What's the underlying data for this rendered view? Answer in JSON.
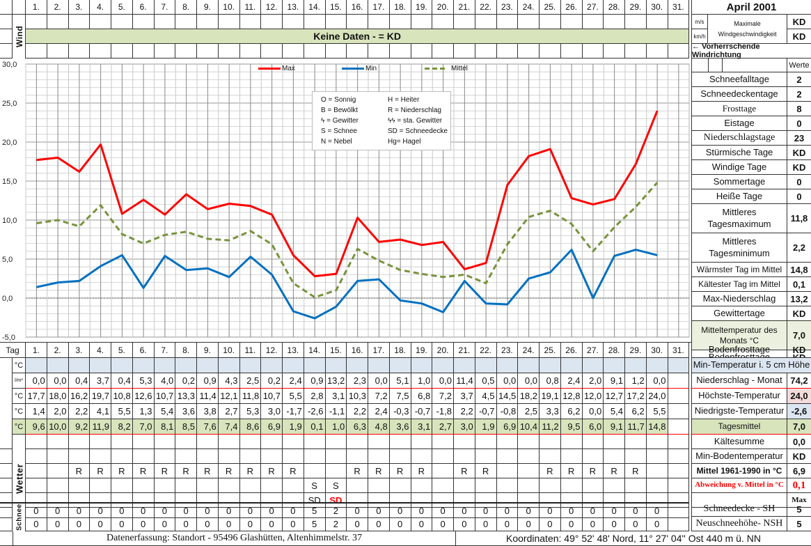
{
  "title": "April 2001",
  "days": [
    "1.",
    "2.",
    "3.",
    "4.",
    "5.",
    "6.",
    "7.",
    "8.",
    "9.",
    "10.",
    "11.",
    "12.",
    "13.",
    "14.",
    "15.",
    "16.",
    "17.",
    "18.",
    "19.",
    "20.",
    "21.",
    "22.",
    "23.",
    "24.",
    "25.",
    "26.",
    "27.",
    "28.",
    "29.",
    "30.",
    "31."
  ],
  "wind": {
    "section_label": "Wind",
    "banner": "Keine Daten -  = KD",
    "unit_ms": "m/s",
    "unit_kmh": "km/h",
    "max_label_1": "Maximale",
    "max_label_2": "Windgeschwindigkeit",
    "max_ms": "KD",
    "max_kmh": "KD",
    "direction_label": "← Vorherrschende Windrichtung"
  },
  "chart_data": {
    "type": "line",
    "x": [
      1,
      2,
      3,
      4,
      5,
      6,
      7,
      8,
      9,
      10,
      11,
      12,
      13,
      14,
      15,
      16,
      17,
      18,
      19,
      20,
      21,
      22,
      23,
      24,
      25,
      26,
      27,
      28,
      29,
      30
    ],
    "series": [
      {
        "name": "Max",
        "color": "#ff0000",
        "style": "solid",
        "values": [
          17.7,
          18.0,
          16.2,
          19.7,
          10.8,
          12.6,
          10.7,
          13.3,
          11.4,
          12.1,
          11.8,
          10.7,
          5.5,
          2.8,
          3.1,
          10.3,
          7.2,
          7.5,
          6.8,
          7.2,
          3.7,
          4.5,
          14.5,
          18.2,
          19.1,
          12.8,
          12.0,
          12.7,
          17.2,
          24.0
        ]
      },
      {
        "name": "Min",
        "color": "#0070c0",
        "style": "solid",
        "values": [
          1.4,
          2.0,
          2.2,
          4.1,
          5.5,
          1.3,
          5.4,
          3.6,
          3.8,
          2.7,
          5.3,
          3.0,
          -1.7,
          -2.6,
          -1.1,
          2.2,
          2.4,
          -0.3,
          -0.7,
          -1.8,
          2.2,
          -0.7,
          -0.8,
          2.5,
          3.3,
          6.2,
          0.0,
          5.4,
          6.2,
          5.5
        ]
      },
      {
        "name": "Mittel",
        "color": "#77933c",
        "style": "dashed",
        "values": [
          9.6,
          10.0,
          9.2,
          11.9,
          8.2,
          7.0,
          8.1,
          8.5,
          7.6,
          7.4,
          8.6,
          6.9,
          1.9,
          0.1,
          1.0,
          6.3,
          4.8,
          3.6,
          3.1,
          2.7,
          3.0,
          1.9,
          6.9,
          10.4,
          11.2,
          9.5,
          6.0,
          9.1,
          11.7,
          14.8
        ]
      }
    ],
    "ylim": [
      -5.0,
      30.0
    ],
    "yticks": [
      "30,0",
      "25,0",
      "20,0",
      "15,0",
      "10,0",
      "5,0",
      "0,0",
      "-5,0"
    ],
    "grid": true,
    "legend_position": "top"
  },
  "weather_legend": [
    {
      "left": "O = Sonnig",
      "right": "H = Heiter"
    },
    {
      "left": "B = Bewölkt",
      "right": "R = Niederschlag"
    },
    {
      "left": "ϟ = Gewitter",
      "right": "ϟϟ = sta. Gewitter"
    },
    {
      "left": "S = Schnee",
      "right": "SD = Schneedecke"
    },
    {
      "left": "N = Nebel",
      "right": "Hg= Hagel"
    }
  ],
  "stats": {
    "header": "Werte",
    "items": [
      {
        "label": "Schneefalltage",
        "value": "2"
      },
      {
        "label": "Schneedeckentage",
        "value": "2"
      },
      {
        "label": "Frosttage",
        "value": "8"
      },
      {
        "label": "Eistage",
        "value": "0"
      },
      {
        "label": "Niederschlagstage",
        "value": "23"
      },
      {
        "label": "Stürmische Tage",
        "value": "KD"
      },
      {
        "label": "Windige Tage",
        "value": "KD"
      },
      {
        "label": "Sommertage",
        "value": "0"
      },
      {
        "label": "Heiße Tage",
        "value": "0"
      },
      {
        "label": "Mittleres Tagesmaximum",
        "value": "11,8"
      },
      {
        "label": "Mittleres Tagesminimum",
        "value": "2,2"
      },
      {
        "label": "Wärmster Tag im Mittel",
        "value": "14,8"
      },
      {
        "label": "Kältester Tag im Mittel",
        "value": "0,1"
      },
      {
        "label": "Max-Niederschlag",
        "value": "13,2"
      },
      {
        "label": "Gewittertage",
        "value": "KD"
      },
      {
        "label": "Mitteltemperatur des Monats °C",
        "value": "7,0"
      },
      {
        "label": "Bodenfrosttage",
        "value": "KD"
      }
    ]
  },
  "table": {
    "tag_label": "Tag",
    "rows": [
      {
        "unit": "°C",
        "summary_label": "Min-Temperatur i. 5 cm Höhe",
        "summary_value": "",
        "values": []
      },
      {
        "unit": "l/m²",
        "summary_label": "Niederschlag - Monat",
        "summary_value": "74,2",
        "values": [
          "0,0",
          "0,0",
          "0,4",
          "3,7",
          "0,4",
          "5,3",
          "4,0",
          "0,2",
          "0,9",
          "4,3",
          "2,5",
          "0,2",
          "2,4",
          "0,9",
          "13,2",
          "2,3",
          "0,0",
          "5,1",
          "1,0",
          "0,0",
          "11,4",
          "0,5",
          "0,0",
          "0,0",
          "0,8",
          "2,4",
          "2,0",
          "9,1",
          "1,2",
          "0,0",
          ""
        ]
      },
      {
        "unit": "°C",
        "summary_label": "Höchste-Temperatur",
        "summary_value": "24,0",
        "values": [
          "17,7",
          "18,0",
          "16,2",
          "19,7",
          "10,8",
          "12,6",
          "10,7",
          "13,3",
          "11,4",
          "12,1",
          "11,8",
          "10,7",
          "5,5",
          "2,8",
          "3,1",
          "10,3",
          "7,2",
          "7,5",
          "6,8",
          "7,2",
          "3,7",
          "4,5",
          "14,5",
          "18,2",
          "19,1",
          "12,8",
          "12,0",
          "12,7",
          "17,2",
          "24,0",
          ""
        ]
      },
      {
        "unit": "°C",
        "summary_label": "Niedrigste-Temperatur",
        "summary_value": "-2,6",
        "values": [
          "1,4",
          "2,0",
          "2,2",
          "4,1",
          "5,5",
          "1,3",
          "5,4",
          "3,6",
          "3,8",
          "2,7",
          "5,3",
          "3,0",
          "-1,7",
          "-2,6",
          "-1,1",
          "2,2",
          "2,4",
          "-0,3",
          "-0,7",
          "-1,8",
          "2,2",
          "-0,7",
          "-0,8",
          "2,5",
          "3,3",
          "6,2",
          "0,0",
          "5,4",
          "6,2",
          "5,5",
          ""
        ]
      },
      {
        "unit": "°C",
        "summary_label": "Tagesmittel",
        "summary_value": "7,0",
        "values": [
          "9,6",
          "10,0",
          "9,2",
          "11,9",
          "8,2",
          "7,0",
          "8,1",
          "8,5",
          "7,6",
          "7,4",
          "8,6",
          "6,9",
          "1,9",
          "0,1",
          "1,0",
          "6,3",
          "4,8",
          "3,6",
          "3,1",
          "2,7",
          "3,0",
          "1,9",
          "6,9",
          "10,4",
          "11,2",
          "9,5",
          "6,0",
          "9,1",
          "11,7",
          "14,8",
          ""
        ]
      }
    ]
  },
  "wetter": {
    "section_label": "Wetter",
    "rows": [
      {
        "summary_label": "Kältesumme",
        "summary_value": "0,0",
        "values": [
          "",
          "",
          "",
          "",
          "",
          "",
          "",
          "",
          "",
          "",
          "",
          "",
          "",
          "",
          "",
          "",
          "",
          "",
          "",
          "",
          "",
          "",
          "",
          "",
          "",
          "",
          "",
          "",
          "",
          "",
          ""
        ]
      },
      {
        "summary_label": "Min-Bodentemperatur",
        "summary_value": "KD",
        "values": [
          "",
          "",
          "",
          "",
          "",
          "",
          "",
          "",
          "",
          "",
          "",
          "",
          "",
          "",
          "",
          "",
          "",
          "",
          "",
          "",
          "",
          "",
          "",
          "",
          "",
          "",
          "",
          "",
          "",
          "",
          ""
        ]
      },
      {
        "summary_label": "Mittel 1961-1990 in °C",
        "summary_value": "6,9",
        "values": [
          "",
          "",
          "R",
          "R",
          "R",
          "R",
          "R",
          "R",
          "R",
          "R",
          "R",
          "R",
          "R",
          "",
          "",
          "R",
          "R",
          "R",
          "R",
          "",
          "R",
          "R",
          "",
          "",
          "R",
          "R",
          "R",
          "R",
          "R",
          "",
          ""
        ]
      },
      {
        "summary_label": "Abweichung v. Mittel in °C",
        "summary_value": "0,1",
        "values": [
          "",
          "",
          "",
          "",
          "",
          "",
          "",
          "",
          "",
          "",
          "",
          "",
          "",
          "S",
          "S",
          "",
          "",
          "",
          "",
          "",
          "",
          "",
          "",
          "",
          "",
          "",
          "",
          "",
          "",
          "",
          ""
        ]
      },
      {
        "summary_label": "",
        "summary_value": "Max",
        "values": [
          "",
          "",
          "",
          "",
          "",
          "",
          "",
          "",
          "",
          "",
          "",
          "",
          "",
          "SD",
          "SD",
          "",
          "",
          "",
          "",
          "",
          "",
          "",
          "",
          "",
          "",
          "",
          "",
          "",
          "",
          "",
          ""
        ]
      }
    ]
  },
  "schnee": {
    "section_label": "Schnee",
    "rows": [
      {
        "summary_label": "Schneedecke -   SH",
        "summary_value": "5",
        "values": [
          "0",
          "0",
          "0",
          "0",
          "0",
          "0",
          "0",
          "0",
          "0",
          "0",
          "0",
          "0",
          "0",
          "5",
          "2",
          "0",
          "0",
          "0",
          "0",
          "0",
          "0",
          "0",
          "0",
          "0",
          "0",
          "0",
          "0",
          "0",
          "0",
          "0",
          ""
        ]
      },
      {
        "summary_label": "Neuschneehöhe- NSH",
        "summary_value": "5",
        "values": [
          "0",
          "0",
          "0",
          "0",
          "0",
          "0",
          "0",
          "0",
          "0",
          "0",
          "0",
          "0",
          "0",
          "5",
          "2",
          "0",
          "0",
          "0",
          "0",
          "0",
          "0",
          "0",
          "0",
          "0",
          "0",
          "0",
          "0",
          "0",
          "0",
          "0",
          ""
        ]
      }
    ]
  },
  "footer": {
    "location": "Datenerfassung:  Standort -  95496  Glashütten, Altenhimmelstr. 37",
    "coordinates": "Koordinaten:  49° 52' 48' Nord,   11° 27' 04'' Ost   440 m ü. NN"
  },
  "colors": {
    "max": "#ff0000",
    "min": "#0070c0",
    "mittel": "#77933c",
    "green_fill": "#d8e4bc",
    "blue_fill": "#dce6f1",
    "highlight_red": "#f2dcdb",
    "warn_text": "#ff0000"
  }
}
